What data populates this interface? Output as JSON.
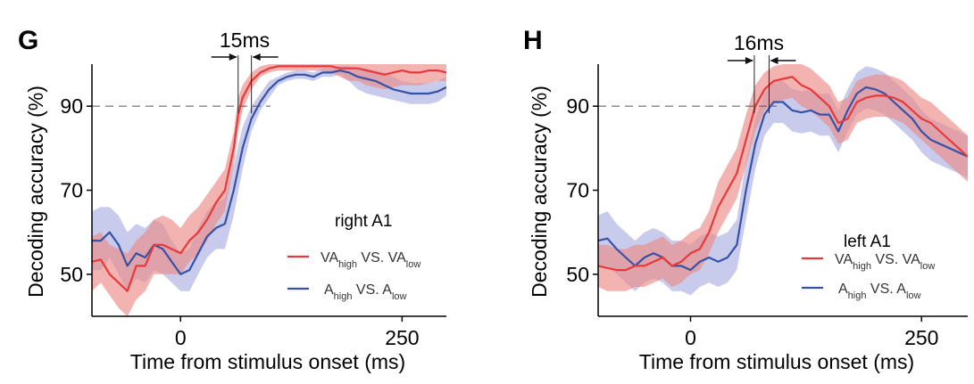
{
  "chart_data": [
    {
      "panel": "G",
      "type": "line",
      "region": "right A1",
      "xlabel": "Time from stimulus onset (ms)",
      "ylabel": "Decoding accuracy (%)",
      "xlim": [
        -100,
        300
      ],
      "ylim": [
        40,
        100
      ],
      "xticks": [
        0,
        250
      ],
      "yticks": [
        50,
        70,
        90
      ],
      "threshold": 90,
      "latency_annotation": "15ms",
      "latency_marks": [
        65,
        80
      ],
      "series": [
        {
          "name": "VAhigh VS. VAlow",
          "label_main": [
            "VA",
            "VS. VA"
          ],
          "label_sub": [
            "high",
            "low"
          ],
          "color": "#e8393a",
          "band_color": "#eb8a87",
          "x": [
            -100,
            -90,
            -80,
            -70,
            -60,
            -50,
            -40,
            -30,
            -20,
            -10,
            0,
            10,
            20,
            30,
            40,
            50,
            60,
            65,
            70,
            80,
            90,
            100,
            110,
            120,
            130,
            140,
            150,
            160,
            170,
            180,
            190,
            200,
            210,
            220,
            230,
            240,
            250,
            260,
            270,
            280,
            290,
            300
          ],
          "mean": [
            53,
            53.5,
            50,
            48,
            46,
            52,
            52,
            57,
            57,
            56,
            55,
            58,
            60,
            63,
            67,
            70,
            80,
            88,
            92,
            96,
            98,
            99,
            99.5,
            99.5,
            99.5,
            99.5,
            99.5,
            99.5,
            99.5,
            99,
            99,
            99,
            98.5,
            98,
            97.5,
            98,
            98.5,
            98,
            98,
            98.5,
            98.5,
            98
          ],
          "lower": [
            46,
            48,
            45,
            42,
            40,
            44,
            46,
            50,
            50,
            50,
            50,
            53,
            55,
            58,
            62,
            65,
            76,
            84,
            89,
            94,
            97,
            98,
            98.5,
            98.5,
            98.5,
            98.5,
            98.5,
            98.5,
            98,
            97,
            96,
            96,
            95,
            94.5,
            94,
            94.5,
            95,
            95,
            95,
            95.5,
            96,
            96
          ],
          "upper": [
            59,
            60,
            57,
            56,
            55,
            58,
            60,
            63,
            64,
            63,
            61,
            64,
            66,
            69,
            72,
            75,
            84,
            92,
            95,
            98,
            99.5,
            100,
            100,
            100,
            100,
            100,
            100,
            100,
            100,
            100,
            100,
            100,
            100,
            100,
            100,
            100,
            100,
            100,
            100,
            100,
            100,
            100
          ]
        },
        {
          "name": "Ahigh VS. Alow",
          "label_main": [
            "A",
            "VS. A"
          ],
          "label_sub": [
            "high",
            "low"
          ],
          "color": "#3652a5",
          "band_color": "#a3a8df",
          "x": [
            -100,
            -90,
            -80,
            -70,
            -60,
            -50,
            -40,
            -30,
            -20,
            -10,
            0,
            10,
            20,
            30,
            40,
            50,
            60,
            70,
            80,
            90,
            100,
            110,
            120,
            130,
            140,
            150,
            160,
            170,
            180,
            190,
            200,
            210,
            220,
            230,
            240,
            250,
            260,
            270,
            280,
            290,
            300
          ],
          "mean": [
            58,
            58,
            60,
            57,
            52,
            55,
            54,
            57,
            56,
            53,
            50,
            51,
            55,
            59,
            61,
            62,
            70,
            80,
            87,
            91,
            94,
            96,
            97,
            97.5,
            97.5,
            97,
            98,
            98,
            98.5,
            98,
            97,
            96.5,
            96,
            95,
            94,
            93.5,
            93,
            93,
            93,
            93.5,
            94.5
          ],
          "lower": [
            51,
            51,
            54,
            50,
            46,
            49,
            48,
            51,
            50,
            48,
            46,
            46,
            50,
            54,
            56,
            56,
            64,
            75,
            84,
            89,
            92,
            95,
            96,
            96.5,
            96.5,
            96,
            97,
            97,
            97.5,
            96,
            94,
            93,
            92.5,
            92,
            91.5,
            91,
            90.5,
            90.5,
            90.5,
            91,
            92.5
          ],
          "upper": [
            65,
            66,
            66,
            64,
            60,
            62,
            61,
            63,
            62,
            58,
            55,
            56,
            61,
            65,
            67,
            68,
            76,
            85,
            90,
            93,
            96,
            97,
            98,
            98.5,
            98.5,
            98,
            99,
            99,
            99.5,
            99.5,
            99,
            99,
            98.5,
            98,
            97,
            96,
            95.5,
            95.5,
            95.5,
            96,
            97
          ]
        }
      ]
    },
    {
      "panel": "H",
      "type": "line",
      "region": "left A1",
      "xlabel": "Time from stimulus onset (ms)",
      "ylabel": "Decoding accuracy (%)",
      "xlim": [
        -100,
        300
      ],
      "ylim": [
        40,
        100
      ],
      "xticks": [
        0,
        250
      ],
      "yticks": [
        50,
        70,
        90
      ],
      "threshold": 90,
      "latency_annotation": "16ms",
      "latency_marks": [
        69,
        85
      ],
      "series": [
        {
          "name": "VAhigh VS. VAlow",
          "label_main": [
            "VA",
            "VS. VA"
          ],
          "label_sub": [
            "high",
            "low"
          ],
          "color": "#e8393a",
          "band_color": "#eb8a87",
          "x": [
            -100,
            -90,
            -80,
            -70,
            -60,
            -50,
            -40,
            -30,
            -20,
            -10,
            0,
            10,
            20,
            30,
            40,
            50,
            60,
            70,
            80,
            90,
            100,
            110,
            120,
            130,
            140,
            150,
            160,
            170,
            180,
            190,
            200,
            210,
            220,
            230,
            240,
            250,
            260,
            270,
            280,
            290,
            300
          ],
          "mean": [
            52,
            51.5,
            51,
            51,
            52,
            52,
            53,
            54,
            52,
            53,
            55,
            56,
            60,
            66,
            70,
            74,
            82,
            90,
            94,
            96,
            96.5,
            97,
            95,
            94,
            92,
            90,
            86,
            87,
            91,
            92,
            92.5,
            92.5,
            92,
            91,
            89,
            87,
            86,
            84,
            82,
            80,
            78
          ],
          "lower": [
            47,
            46,
            46,
            46,
            47,
            47,
            48,
            49,
            47,
            48,
            50,
            51,
            55,
            60,
            64,
            68,
            76,
            84,
            89,
            91,
            91.5,
            92,
            90,
            89,
            87,
            85,
            81,
            82,
            86,
            87,
            87.5,
            87.5,
            87,
            86,
            84,
            82,
            80,
            78,
            76,
            74,
            72
          ],
          "upper": [
            57,
            57,
            56,
            56,
            57,
            57,
            58,
            59,
            57,
            58,
            60,
            61,
            65,
            72,
            76,
            80,
            88,
            95,
            98,
            99.5,
            100,
            100,
            100,
            99,
            97,
            95,
            91,
            92,
            96,
            97,
            97.5,
            97.5,
            97,
            96,
            94,
            92,
            91,
            89,
            87,
            85,
            83
          ]
        },
        {
          "name": "Ahigh VS. Alow",
          "label_main": [
            "A",
            "VS. A"
          ],
          "label_sub": [
            "high",
            "low"
          ],
          "color": "#3652a5",
          "band_color": "#a3a8df",
          "x": [
            -100,
            -90,
            -80,
            -70,
            -60,
            -50,
            -40,
            -30,
            -20,
            -10,
            0,
            10,
            20,
            30,
            40,
            50,
            60,
            70,
            80,
            90,
            100,
            110,
            120,
            130,
            140,
            150,
            160,
            170,
            180,
            190,
            200,
            210,
            220,
            230,
            240,
            250,
            260,
            270,
            280,
            290,
            300
          ],
          "mean": [
            58,
            58.5,
            56,
            54,
            52,
            54,
            55,
            54,
            52,
            52,
            51,
            53,
            54,
            53,
            54,
            57,
            70,
            81,
            88,
            91,
            91,
            89,
            88.5,
            89,
            88,
            88,
            84,
            89,
            93,
            94.5,
            94,
            93,
            91,
            89,
            87,
            84,
            82,
            81,
            80,
            79,
            78
          ],
          "lower": [
            52,
            52,
            50,
            48,
            46,
            48,
            49,
            48,
            46,
            46,
            45,
            47,
            48,
            47,
            48,
            51,
            63,
            75,
            83,
            86,
            86,
            84,
            83.5,
            84,
            83,
            83,
            79,
            84,
            88,
            89.5,
            89,
            88,
            86,
            84,
            82,
            79,
            77,
            76,
            75,
            74,
            73
          ],
          "upper": [
            64,
            65,
            62,
            60,
            58,
            60,
            61,
            60,
            58,
            58,
            57,
            59,
            60,
            59,
            60,
            63,
            77,
            87,
            93,
            96,
            96,
            94,
            93.5,
            94,
            93,
            93,
            89,
            94,
            98,
            99.5,
            99,
            98,
            96,
            94,
            92,
            89,
            87,
            86,
            85,
            84,
            83
          ]
        }
      ]
    }
  ]
}
